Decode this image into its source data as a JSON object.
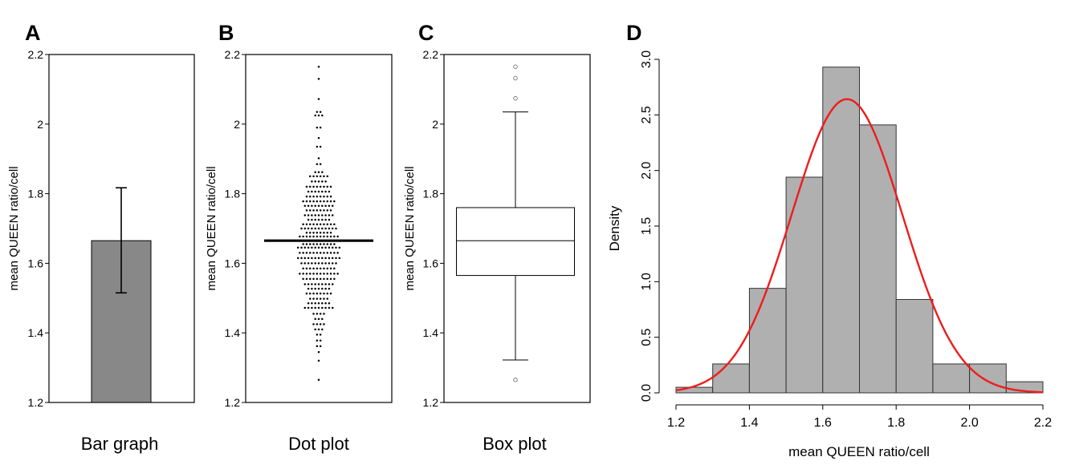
{
  "chart_data": [
    {
      "panel": "A",
      "type": "bar",
      "xlabel": "Bar graph",
      "ylabel": "mean QUEEN ratio/cell",
      "ylim": [
        1.2,
        2.2
      ],
      "yticks": [
        "1.2",
        "1.4",
        "1.6",
        "1.8",
        "2",
        "2.2"
      ],
      "yticks_values": [
        1.2,
        1.4,
        1.6,
        1.8,
        2.0,
        2.2
      ],
      "values": [
        1.665
      ],
      "error": {
        "lower": 1.515,
        "upper": 1.817
      },
      "bar_color": "#888888"
    },
    {
      "panel": "B",
      "type": "scatter",
      "xlabel": "Dot plot",
      "ylabel": "mean QUEEN ratio/cell",
      "ylim": [
        1.2,
        2.2
      ],
      "yticks": [
        "1.2",
        "1.4",
        "1.6",
        "1.8",
        "2",
        "2.2"
      ],
      "yticks_values": [
        1.2,
        1.4,
        1.6,
        1.8,
        2.0,
        2.2
      ],
      "mean_line": 1.665,
      "bins": [
        {
          "y": 2.165,
          "n": 1
        },
        {
          "y": 2.13,
          "n": 1
        },
        {
          "y": 2.072,
          "n": 1
        },
        {
          "y": 2.035,
          "n": 2
        },
        {
          "y": 2.025,
          "n": 3
        },
        {
          "y": 1.99,
          "n": 2
        },
        {
          "y": 1.96,
          "n": 1
        },
        {
          "y": 1.935,
          "n": 2
        },
        {
          "y": 1.902,
          "n": 1
        },
        {
          "y": 1.885,
          "n": 2
        },
        {
          "y": 1.862,
          "n": 3
        },
        {
          "y": 1.85,
          "n": 6
        },
        {
          "y": 1.835,
          "n": 5
        },
        {
          "y": 1.82,
          "n": 8
        },
        {
          "y": 1.806,
          "n": 7
        },
        {
          "y": 1.792,
          "n": 8
        },
        {
          "y": 1.778,
          "n": 10
        },
        {
          "y": 1.765,
          "n": 9
        },
        {
          "y": 1.752,
          "n": 8
        },
        {
          "y": 1.738,
          "n": 9
        },
        {
          "y": 1.725,
          "n": 7
        },
        {
          "y": 1.712,
          "n": 10
        },
        {
          "y": 1.7,
          "n": 11
        },
        {
          "y": 1.688,
          "n": 8
        },
        {
          "y": 1.677,
          "n": 12
        },
        {
          "y": 1.655,
          "n": 10
        },
        {
          "y": 1.645,
          "n": 13
        },
        {
          "y": 1.63,
          "n": 12
        },
        {
          "y": 1.615,
          "n": 13
        },
        {
          "y": 1.6,
          "n": 11
        },
        {
          "y": 1.585,
          "n": 10
        },
        {
          "y": 1.57,
          "n": 12
        },
        {
          "y": 1.555,
          "n": 10
        },
        {
          "y": 1.54,
          "n": 9
        },
        {
          "y": 1.527,
          "n": 7
        },
        {
          "y": 1.513,
          "n": 8
        },
        {
          "y": 1.498,
          "n": 6
        },
        {
          "y": 1.485,
          "n": 7
        },
        {
          "y": 1.472,
          "n": 9
        },
        {
          "y": 1.455,
          "n": 4
        },
        {
          "y": 1.44,
          "n": 3
        },
        {
          "y": 1.425,
          "n": 4
        },
        {
          "y": 1.41,
          "n": 3
        },
        {
          "y": 1.395,
          "n": 2
        },
        {
          "y": 1.378,
          "n": 2
        },
        {
          "y": 1.362,
          "n": 2
        },
        {
          "y": 1.345,
          "n": 1
        },
        {
          "y": 1.32,
          "n": 1
        },
        {
          "y": 1.265,
          "n": 1
        }
      ]
    },
    {
      "panel": "C",
      "type": "box",
      "xlabel": "Box plot",
      "ylabel": "mean QUEEN ratio/cell",
      "ylim": [
        1.2,
        2.2
      ],
      "yticks": [
        "1.2",
        "1.4",
        "1.6",
        "1.8",
        "2",
        "2.2"
      ],
      "yticks_values": [
        1.2,
        1.4,
        1.6,
        1.8,
        2.0,
        2.2
      ],
      "whisker_low": 1.322,
      "q1": 1.565,
      "median": 1.665,
      "q3": 1.76,
      "whisker_high": 2.035,
      "outliers": [
        2.165,
        2.132,
        2.074,
        1.265
      ]
    },
    {
      "panel": "D",
      "type": "histogram",
      "xlabel": "mean QUEEN ratio/cell",
      "ylabel": "Density",
      "xlim": [
        1.2,
        2.2
      ],
      "ylim": [
        0,
        3.0
      ],
      "xticks": [
        "1.2",
        "1.4",
        "1.6",
        "1.8",
        "2.0",
        "2.2"
      ],
      "xticks_values": [
        1.2,
        1.4,
        1.6,
        1.8,
        2.0,
        2.2
      ],
      "yticks": [
        "0.0",
        "0.5",
        "1.0",
        "1.5",
        "2.0",
        "2.5",
        "3.0"
      ],
      "yticks_values": [
        0,
        0.5,
        1.0,
        1.5,
        2.0,
        2.5,
        3.0
      ],
      "bin_edges": [
        1.2,
        1.3,
        1.4,
        1.5,
        1.6,
        1.7,
        1.8,
        1.9,
        2.0,
        2.1,
        2.2
      ],
      "densities": [
        0.05,
        0.26,
        0.94,
        1.94,
        2.93,
        2.41,
        0.84,
        0.26,
        0.26,
        0.1
      ],
      "bar_color": "#b0b0b0",
      "curve": {
        "type": "normal",
        "mean": 1.666,
        "sd": 0.151,
        "color": "#ee1c1c"
      }
    }
  ],
  "panel_labels": [
    "A",
    "B",
    "C",
    "D"
  ]
}
